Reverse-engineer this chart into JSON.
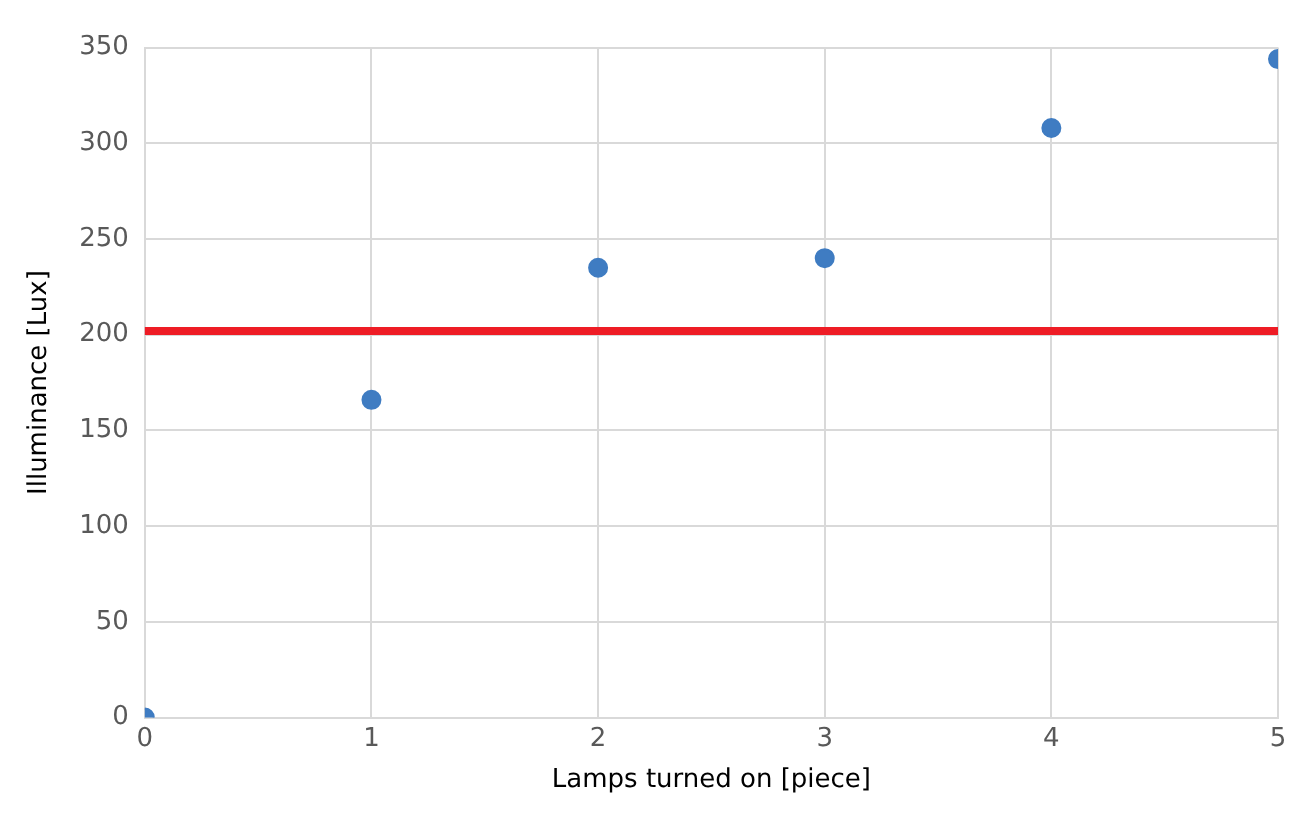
{
  "chart_data": {
    "type": "scatter",
    "xlabel": "Lamps turned on [piece]",
    "ylabel": "Illuminance [Lux]",
    "x": [
      0,
      1,
      2,
      3,
      4,
      5
    ],
    "series": [
      {
        "color": "#3f7cc2",
        "values": [
          0,
          166,
          235,
          240,
          308,
          344
        ]
      }
    ],
    "xlim": [
      0,
      5
    ],
    "xticks": [
      0,
      1,
      2,
      3,
      4,
      5
    ],
    "ylim": [
      0,
      350
    ],
    "yticks": [
      0,
      50,
      100,
      150,
      200,
      250,
      300,
      350
    ],
    "ref_lines": [
      {
        "axis": "y",
        "value": 202,
        "color": "#ee1c25"
      }
    ],
    "grid": true,
    "legend": false,
    "marker": "circle"
  }
}
